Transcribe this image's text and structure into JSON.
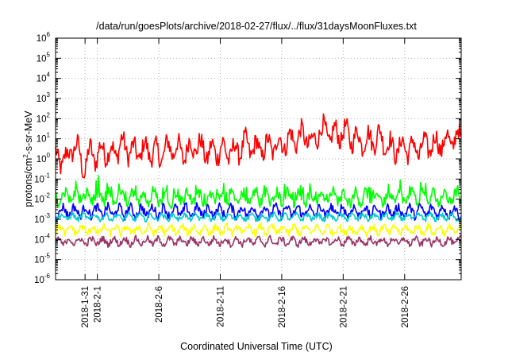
{
  "chart_data": {
    "type": "line",
    "title": "/data/run/goesPlots/archive/2018-02-27/flux/../flux/31daysMoonFluxes.txt",
    "xlabel": "Coordinated Universal Time (UTC)",
    "ylabel": "protons/cm2-s-sr-MeV",
    "ylabel_parts": {
      "pre": "protons/cm",
      "sup": "2",
      "post": "-s-sr-MeV"
    },
    "y_scale": "log",
    "ylim_exponents": [
      -6,
      6
    ],
    "y_tick_base": "10",
    "y_tick_exponents": [
      "-6",
      "-5",
      "-4",
      "-3",
      "-2",
      "-1",
      "0",
      "1",
      "2",
      "3",
      "4",
      "5",
      "6"
    ],
    "xlim_days": [
      -3.4,
      29.6
    ],
    "x_ticks": [
      {
        "label": "2018-1-31",
        "day": -1
      },
      {
        "label": "2018-2-1",
        "day": 0
      },
      {
        "label": "2018-2-6",
        "day": 5
      },
      {
        "label": "2018-2-11",
        "day": 10
      },
      {
        "label": "2018-2-16",
        "day": 15
      },
      {
        "label": "2018-2-21",
        "day": 20
      },
      {
        "label": "2018-2-26",
        "day": 25
      }
    ],
    "grid": true,
    "legend": "none",
    "series": [
      {
        "color": "#ff0000",
        "baseline": 2.5,
        "points": [
          [
            -3.0,
            1.0
          ],
          [
            -2.5,
            0.8
          ],
          [
            -2.0,
            5.0
          ],
          [
            -1.5,
            2.0
          ],
          [
            -1.0,
            0.3
          ],
          [
            -0.5,
            3.0
          ],
          [
            0.0,
            1.0
          ],
          [
            0.5,
            4.0
          ],
          [
            1.0,
            1.5
          ],
          [
            2.0,
            5.0
          ],
          [
            3.0,
            2.0
          ],
          [
            4.0,
            3.0
          ],
          [
            5.0,
            1.5
          ],
          [
            6.0,
            4.0
          ],
          [
            7.0,
            2.0
          ],
          [
            8.0,
            5.0
          ],
          [
            9.0,
            2.0
          ],
          [
            10.0,
            3.0
          ],
          [
            11.0,
            2.0
          ],
          [
            12.0,
            5.0
          ],
          [
            13.0,
            3.0
          ],
          [
            14.0,
            4.0
          ],
          [
            15.0,
            6.0
          ],
          [
            16.0,
            10.0
          ],
          [
            17.0,
            15.0
          ],
          [
            17.5,
            4.0
          ],
          [
            18.0,
            30.0
          ],
          [
            19.0,
            15.0
          ],
          [
            20.0,
            20.0
          ],
          [
            21.0,
            10.0
          ],
          [
            22.0,
            8.0
          ],
          [
            23.0,
            12.0
          ],
          [
            24.0,
            3.0
          ],
          [
            25.0,
            4.0
          ],
          [
            26.0,
            3.0
          ],
          [
            27.0,
            5.0
          ],
          [
            28.0,
            6.0
          ],
          [
            29.5,
            12.0
          ]
        ]
      },
      {
        "color": "#00ff00",
        "baseline": 0.012,
        "points": []
      },
      {
        "color": "#0000ff",
        "baseline": 0.0025,
        "points": []
      },
      {
        "color": "#00cccc",
        "baseline": 0.0013,
        "points": []
      },
      {
        "color": "#ffff00",
        "baseline": 0.0003,
        "points": []
      },
      {
        "color": "#993366",
        "baseline": 8e-05,
        "points": []
      }
    ]
  }
}
